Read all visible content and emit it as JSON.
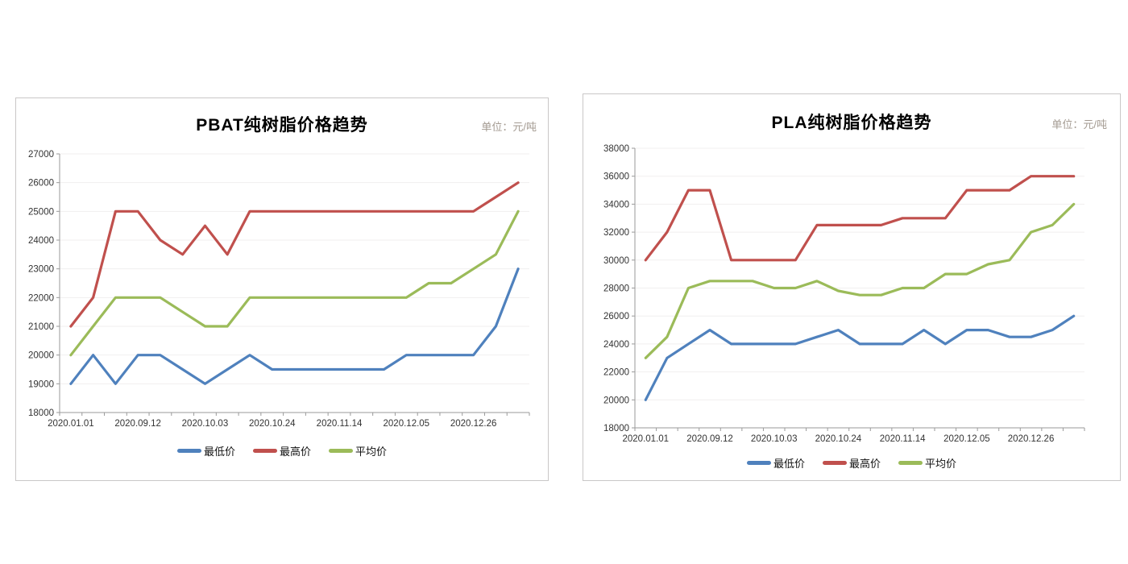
{
  "chart_data": [
    {
      "type": "line",
      "title": "PBAT纯树脂价格趋势",
      "unit_label": "单位：元/吨",
      "xlabel": "",
      "ylabel": "",
      "ylim": [
        18000,
        27000
      ],
      "ytick_step": 1000,
      "grid": "horizontal",
      "legend_position": "bottom",
      "num_points": 21,
      "x_tick_labels": [
        "2020.01.01",
        "2020.09.12",
        "2020.10.03",
        "2020.10.24",
        "2020.11.14",
        "2020.12.05",
        "2020.12.26"
      ],
      "label_interval": 3,
      "series": [
        {
          "name": "最低价",
          "color": "#4F81BD",
          "values": [
            19000,
            20000,
            19000,
            20000,
            20000,
            19500,
            19000,
            19500,
            20000,
            19500,
            19500,
            19500,
            19500,
            19500,
            19500,
            20000,
            20000,
            20000,
            20000,
            21000,
            23000
          ]
        },
        {
          "name": "最高价",
          "color": "#C0504D",
          "values": [
            21000,
            22000,
            25000,
            25000,
            24000,
            23500,
            24500,
            23500,
            25000,
            25000,
            25000,
            25000,
            25000,
            25000,
            25000,
            25000,
            25000,
            25000,
            25000,
            25500,
            26000
          ]
        },
        {
          "name": "平均价",
          "color": "#9BBB59",
          "values": [
            20000,
            21000,
            22000,
            22000,
            22000,
            21500,
            21000,
            21000,
            22000,
            22000,
            22000,
            22000,
            22000,
            22000,
            22000,
            22000,
            22500,
            22500,
            23000,
            23500,
            25000
          ]
        }
      ]
    },
    {
      "type": "line",
      "title": "PLA纯树脂价格趋势",
      "unit_label": "单位：元/吨",
      "xlabel": "",
      "ylabel": "",
      "ylim": [
        18000,
        38000
      ],
      "ytick_step": 2000,
      "grid": "horizontal",
      "legend_position": "bottom",
      "num_points": 21,
      "x_tick_labels": [
        "2020.01.01",
        "2020.09.12",
        "2020.10.03",
        "2020.10.24",
        "2020.11.14",
        "2020.12.05",
        "2020.12.26"
      ],
      "label_interval": 3,
      "series": [
        {
          "name": "最低价",
          "color": "#4F81BD",
          "values": [
            20000,
            23000,
            24000,
            25000,
            24000,
            24000,
            24000,
            24000,
            24500,
            25000,
            24000,
            24000,
            24000,
            25000,
            24000,
            25000,
            25000,
            24500,
            24500,
            25000,
            26000
          ]
        },
        {
          "name": "最高价",
          "color": "#C0504D",
          "values": [
            30000,
            32000,
            35000,
            35000,
            30000,
            30000,
            30000,
            30000,
            32500,
            32500,
            32500,
            32500,
            33000,
            33000,
            33000,
            35000,
            35000,
            35000,
            36000,
            36000,
            36000
          ]
        },
        {
          "name": "平均价",
          "color": "#9BBB59",
          "values": [
            23000,
            24500,
            28000,
            28500,
            28500,
            28500,
            28000,
            28000,
            28500,
            27800,
            27500,
            27500,
            28000,
            28000,
            29000,
            29000,
            29700,
            30000,
            32000,
            32500,
            34000
          ]
        }
      ]
    }
  ],
  "styles": {
    "axis_color": "#9a9a9a",
    "gridline_color": "#f1efef",
    "tick_label_color": "#333333",
    "line_width": 3.2
  }
}
